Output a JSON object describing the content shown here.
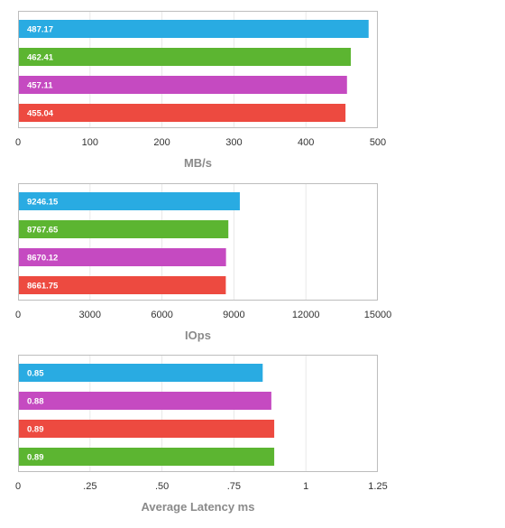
{
  "colors": {
    "blue": "#29abe2",
    "green": "#5cb531",
    "magenta": "#c54ac1",
    "red": "#ed4a40",
    "grid": "#e8e8e8",
    "frame": "#bdbdbd"
  },
  "chart_data": [
    {
      "type": "bar",
      "orientation": "horizontal",
      "xlabel": "MB/s",
      "xlim": [
        0,
        500
      ],
      "ticks": [
        "0",
        "100",
        "200",
        "300",
        "400",
        "500"
      ],
      "grid": true,
      "bars": [
        {
          "value": 487.17,
          "label": "487.17",
          "color": "#29abe2"
        },
        {
          "value": 462.41,
          "label": "462.41",
          "color": "#5cb531"
        },
        {
          "value": 457.11,
          "label": "457.11",
          "color": "#c54ac1"
        },
        {
          "value": 455.04,
          "label": "455.04",
          "color": "#ed4a40"
        }
      ]
    },
    {
      "type": "bar",
      "orientation": "horizontal",
      "xlabel": "IOps",
      "xlim": [
        0,
        15000
      ],
      "ticks": [
        "0",
        "3000",
        "6000",
        "9000",
        "12000",
        "15000"
      ],
      "grid": true,
      "bars": [
        {
          "value": 9246.15,
          "label": "9246.15",
          "color": "#29abe2"
        },
        {
          "value": 8767.65,
          "label": "8767.65",
          "color": "#5cb531"
        },
        {
          "value": 8670.12,
          "label": "8670.12",
          "color": "#c54ac1"
        },
        {
          "value": 8661.75,
          "label": "8661.75",
          "color": "#ed4a40"
        }
      ]
    },
    {
      "type": "bar",
      "orientation": "horizontal",
      "xlabel": "Average Latency ms",
      "xlim": [
        0,
        1.25
      ],
      "ticks": [
        "0",
        ".25",
        ".50",
        ".75",
        "1",
        "1.25"
      ],
      "grid": true,
      "bars": [
        {
          "value": 0.85,
          "label": "0.85",
          "color": "#29abe2"
        },
        {
          "value": 0.88,
          "label": "0.88",
          "color": "#c54ac1"
        },
        {
          "value": 0.89,
          "label": "0.89",
          "color": "#ed4a40"
        },
        {
          "value": 0.89,
          "label": "0.89",
          "color": "#5cb531"
        }
      ]
    }
  ]
}
